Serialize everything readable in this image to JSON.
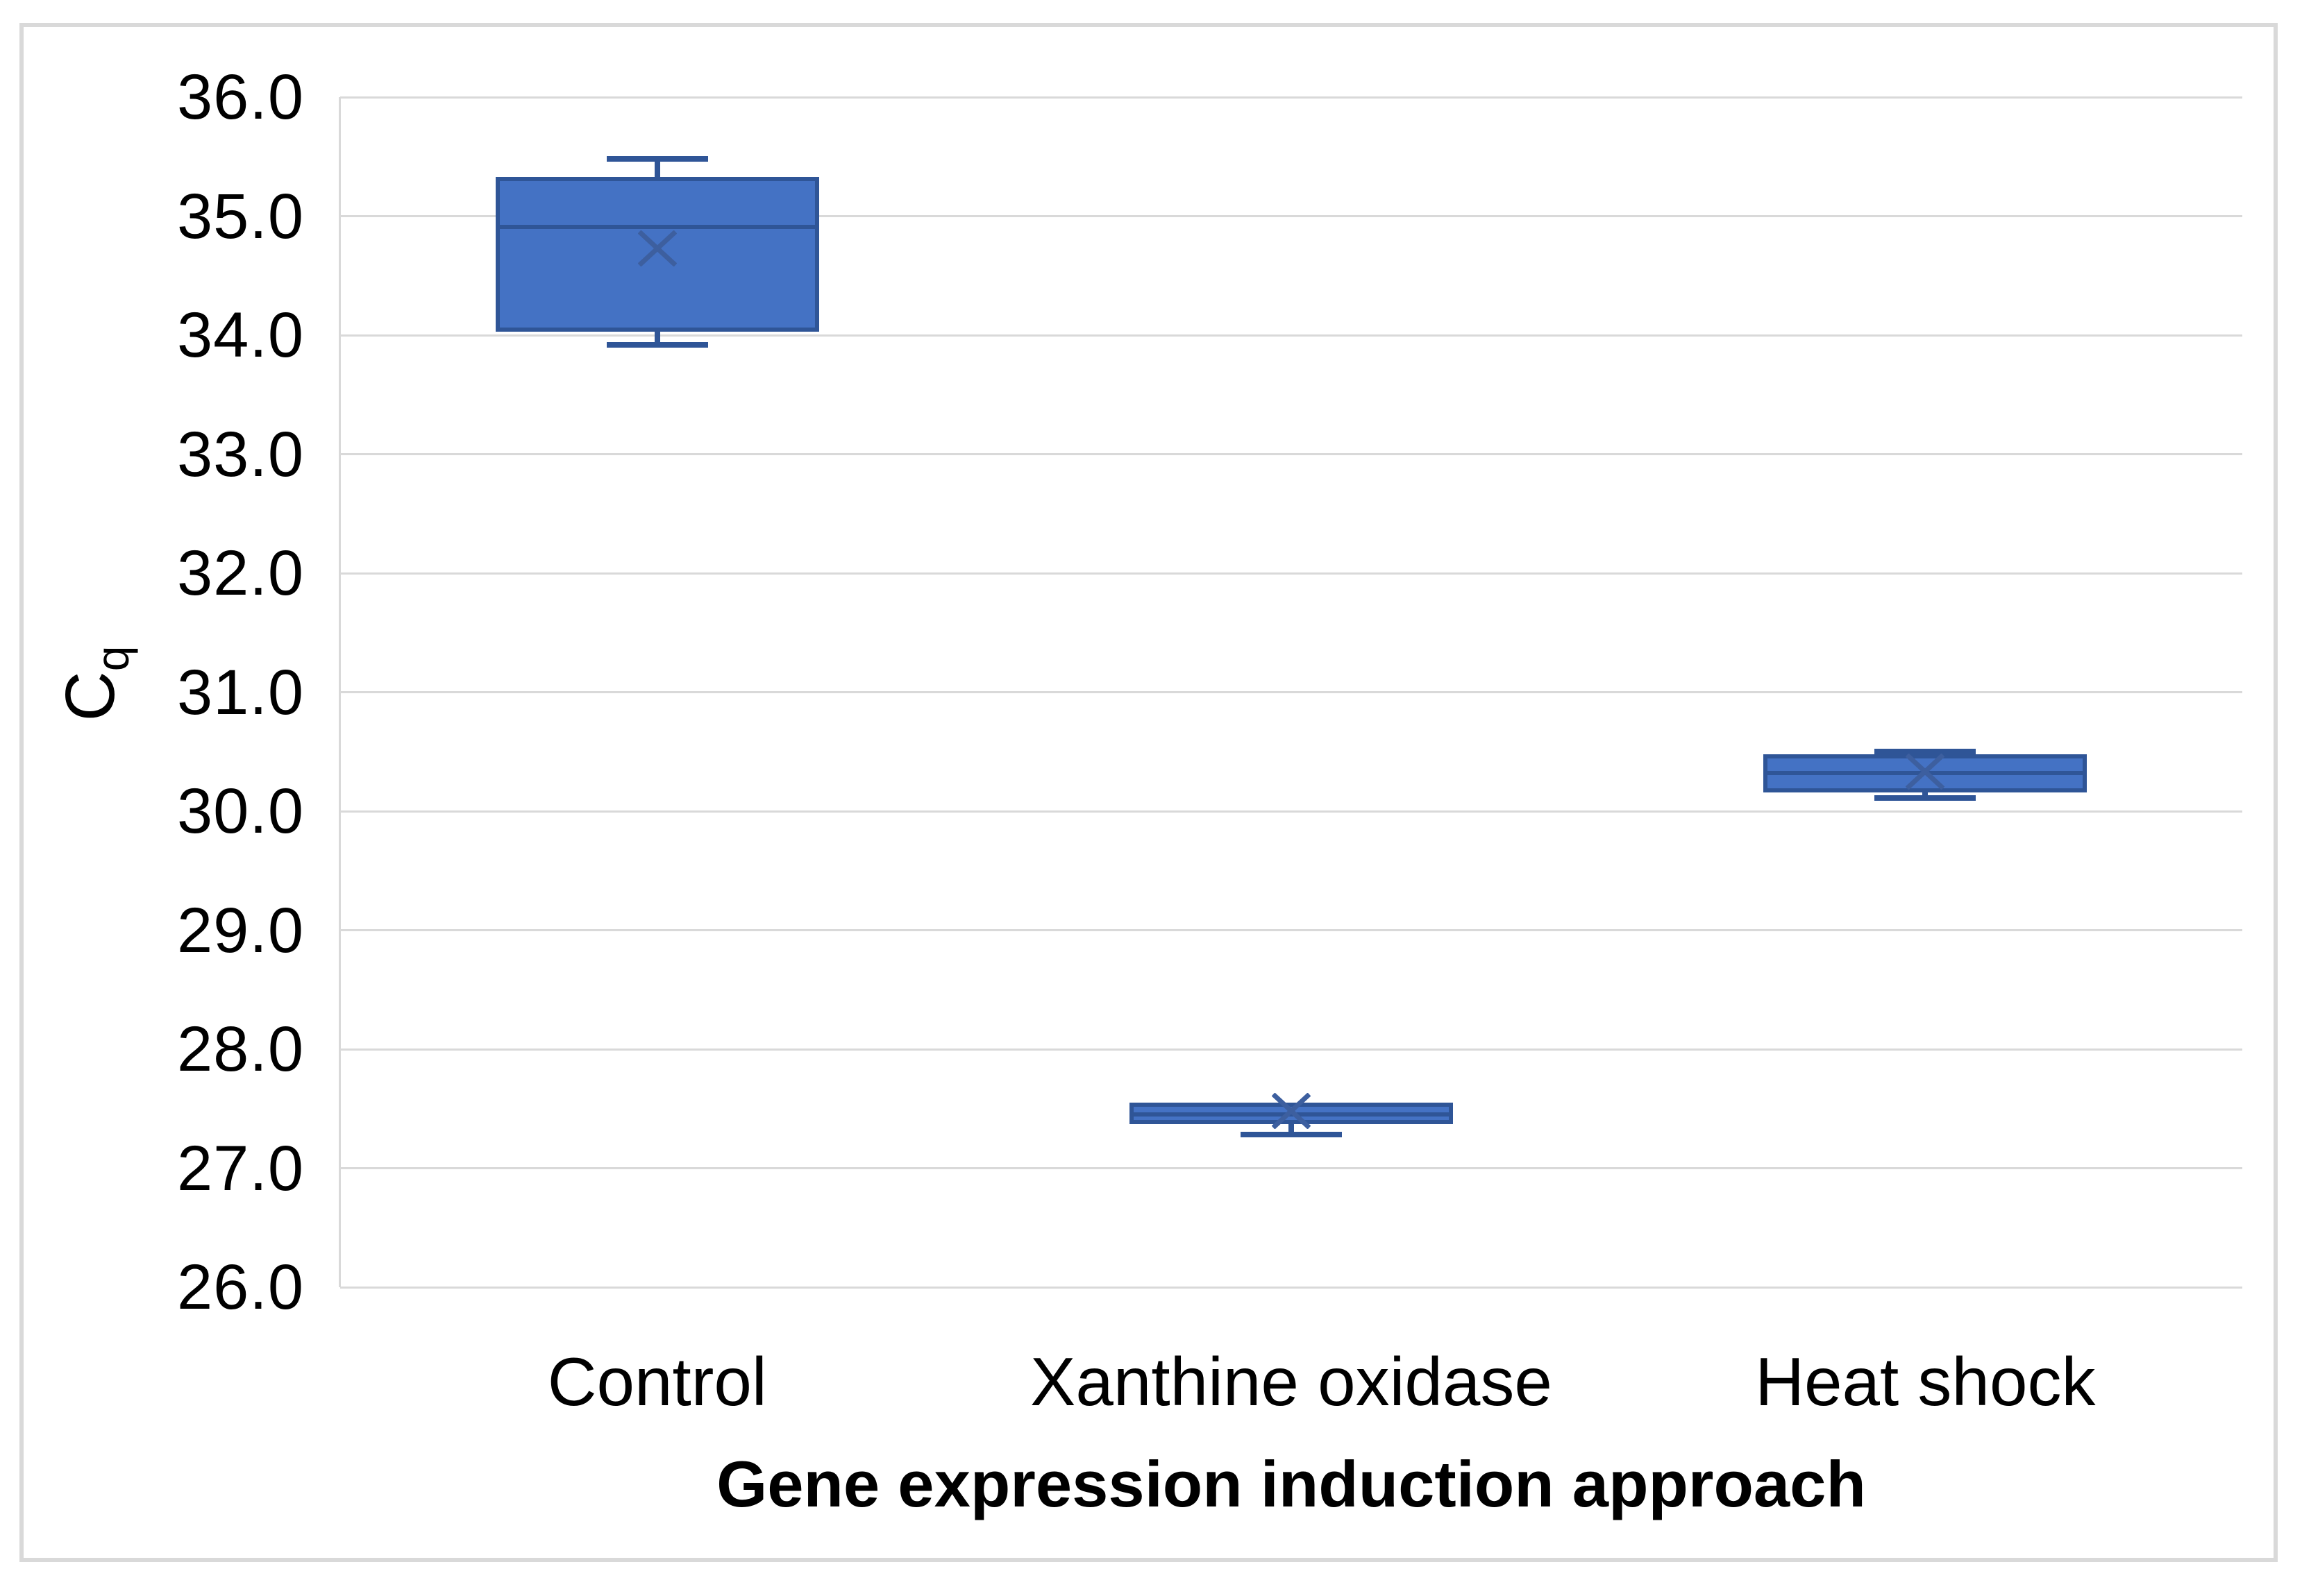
{
  "chart_data": {
    "type": "box",
    "title": "",
    "xlabel": "Gene expression induction approach",
    "ylabel_base": "C",
    "ylabel_sub": "q",
    "ylim": [
      26.0,
      36.0
    ],
    "ytick_labels": [
      "36.0",
      "35.0",
      "34.0",
      "33.0",
      "32.0",
      "31.0",
      "30.0",
      "29.0",
      "28.0",
      "27.0",
      "26.0"
    ],
    "grid": true,
    "legend": "none",
    "categories": [
      "Control",
      "Xanthine oxidase",
      "Heat shock"
    ],
    "series": [
      {
        "name": "Control",
        "min": 33.92,
        "q1": 34.03,
        "median": 34.91,
        "q3": 35.33,
        "max": 35.48,
        "mean": 34.73
      },
      {
        "name": "Xanthine oxidase",
        "min": 27.28,
        "q1": 27.37,
        "median": 27.45,
        "q3": 27.55,
        "max": 27.55,
        "mean": 27.48
      },
      {
        "name": "Heat shock",
        "min": 30.11,
        "q1": 30.16,
        "median": 30.32,
        "q3": 30.48,
        "max": 30.5,
        "mean": 30.33
      }
    ],
    "colors": {
      "box_fill": "#4472C4",
      "box_border": "#2F5597",
      "mean_marker": "#3D5F9F",
      "gridline": "#D9D9D9",
      "axis_line": "#D9D9D9",
      "chart_border": "#D9D9D9",
      "text": "#000000"
    }
  }
}
